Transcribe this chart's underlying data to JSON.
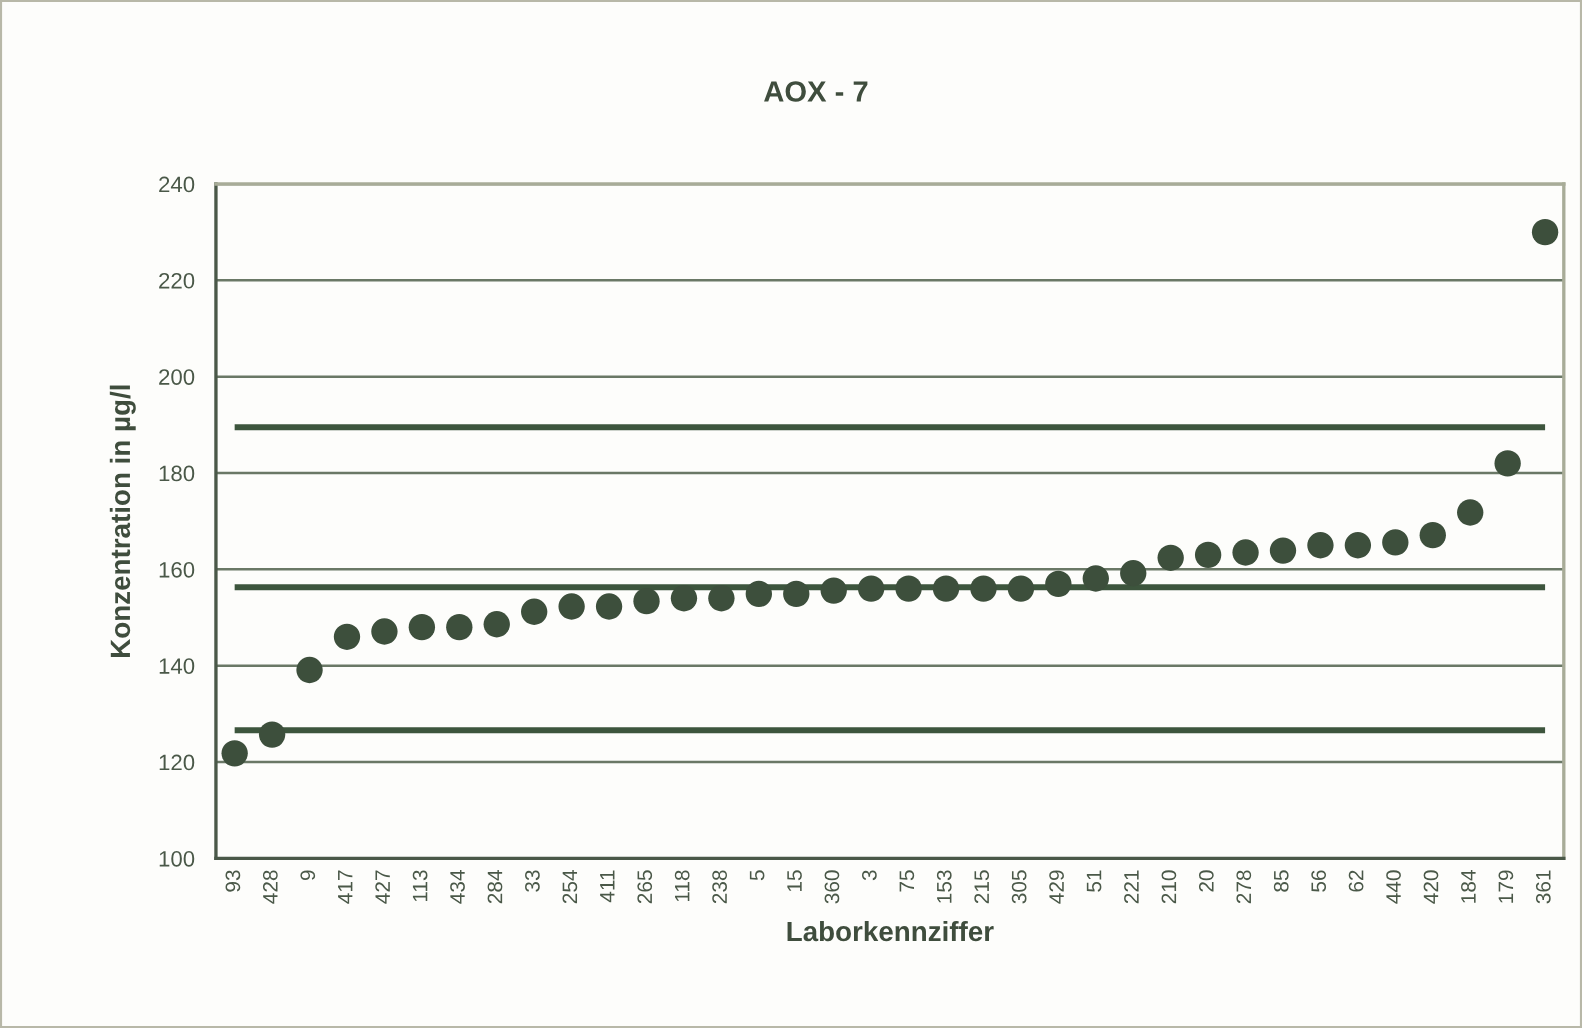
{
  "chart_data": {
    "type": "scatter",
    "title": "AOX - 7",
    "xlabel": "Laborkennziffer",
    "ylabel": "Konzentration in µg/l",
    "categories": [
      "93",
      "428",
      "9",
      "417",
      "427",
      "113",
      "434",
      "284",
      "33",
      "254",
      "411",
      "265",
      "118",
      "238",
      "5",
      "15",
      "360",
      "3",
      "75",
      "153",
      "215",
      "305",
      "429",
      "51",
      "221",
      "210",
      "20",
      "278",
      "85",
      "56",
      "62",
      "440",
      "420",
      "184",
      "179",
      "361"
    ],
    "series": [
      {
        "color": "#3d4f3c",
        "values": [
          121.8,
          125.7,
          139.1,
          146.0,
          147.1,
          148.0,
          148.0,
          148.6,
          151.2,
          152.3,
          152.3,
          153.4,
          154.0,
          154.0,
          154.9,
          154.9,
          155.6,
          156.0,
          156.0,
          156.0,
          156.0,
          156.0,
          157.0,
          158.1,
          159.2,
          162.4,
          163.0,
          163.5,
          163.9,
          165.0,
          165.0,
          165.6,
          167.1,
          171.8,
          182.0,
          230.0
        ]
      }
    ],
    "ylim": [
      100,
      240
    ],
    "yticks": [
      100,
      120,
      140,
      160,
      180,
      200,
      220,
      240
    ],
    "grid": "y",
    "marker": "circle",
    "ref_lines": [
      {
        "axis": "y",
        "value": 189.5,
        "color": "#3d553d"
      },
      {
        "axis": "y",
        "value": 156.3,
        "color": "#3d553d"
      },
      {
        "axis": "y",
        "value": 126.6,
        "color": "#3d553d"
      }
    ]
  }
}
